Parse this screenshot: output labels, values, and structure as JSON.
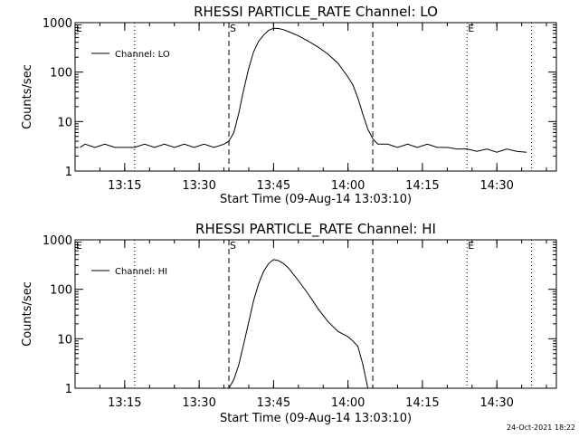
{
  "chart_data": [
    {
      "type": "line",
      "title": "RHESSI PARTICLE_RATE Channel: LO",
      "xlabel": "Start Time (09-Aug-14 13:03:10)",
      "ylabel": "Counts/sec",
      "yscale": "log",
      "ylim": [
        1,
        1000
      ],
      "y_ticks": [
        1,
        10,
        100,
        1000
      ],
      "y_tick_labels": [
        "1",
        "10",
        "100",
        "1000"
      ],
      "xlim": [
        "13:05",
        "14:42"
      ],
      "x_ticks": [
        "13:15",
        "13:30",
        "13:45",
        "14:00",
        "14:15",
        "14:30"
      ],
      "legend": {
        "position": "top-left",
        "entries": [
          "Channel: LO"
        ]
      },
      "markers": [
        {
          "time": "13:05",
          "style": "dotted",
          "label": "E"
        },
        {
          "time": "13:17",
          "style": "dotted",
          "label": ""
        },
        {
          "time": "13:36",
          "style": "dashed",
          "label": "S"
        },
        {
          "time": "14:05",
          "style": "dashed",
          "label": ""
        },
        {
          "time": "14:24",
          "style": "dotted",
          "label": "E"
        },
        {
          "time": "14:37",
          "style": "dotted",
          "label": ""
        }
      ],
      "series": [
        {
          "name": "Channel: LO",
          "x": [
            "13:06",
            "13:07",
            "13:09",
            "13:11",
            "13:13",
            "13:15",
            "13:17",
            "13:19",
            "13:21",
            "13:23",
            "13:25",
            "13:27",
            "13:29",
            "13:31",
            "13:33",
            "13:35",
            "13:36",
            "13:37",
            "13:38",
            "13:39",
            "13:40",
            "13:41",
            "13:42",
            "13:43",
            "13:44",
            "13:45",
            "13:46",
            "13:47",
            "13:48",
            "13:50",
            "13:52",
            "13:54",
            "13:56",
            "13:58",
            "14:00",
            "14:01",
            "14:02",
            "14:03",
            "14:04",
            "14:05",
            "14:06",
            "14:08",
            "14:10",
            "14:12",
            "14:14",
            "14:16",
            "14:18",
            "14:20",
            "14:22",
            "14:24",
            "14:26",
            "14:28",
            "14:30",
            "14:32",
            "14:34",
            "14:36"
          ],
          "y": [
            3,
            3.5,
            3,
            3.5,
            3,
            3,
            3,
            3.5,
            3,
            3.5,
            3,
            3.5,
            3,
            3.5,
            3,
            3.5,
            4,
            6,
            15,
            45,
            120,
            260,
            420,
            560,
            700,
            770,
            760,
            720,
            660,
            540,
            420,
            320,
            230,
            150,
            80,
            55,
            30,
            14,
            7,
            4.5,
            3.5,
            3.5,
            3,
            3.5,
            3,
            3.5,
            3,
            3,
            2.8,
            2.8,
            2.5,
            2.8,
            2.4,
            2.8,
            2.5,
            2.4
          ]
        }
      ]
    },
    {
      "type": "line",
      "title": "RHESSI PARTICLE_RATE Channel: HI",
      "xlabel": "Start Time (09-Aug-14 13:03:10)",
      "ylabel": "Counts/sec",
      "yscale": "log",
      "ylim": [
        1,
        1000
      ],
      "y_ticks": [
        1,
        10,
        100,
        1000
      ],
      "y_tick_labels": [
        "1",
        "10",
        "100",
        "1000"
      ],
      "xlim": [
        "13:05",
        "14:42"
      ],
      "x_ticks": [
        "13:15",
        "13:30",
        "13:45",
        "14:00",
        "14:15",
        "14:30"
      ],
      "legend": {
        "position": "top-left",
        "entries": [
          "Channel: HI"
        ]
      },
      "markers": [
        {
          "time": "13:05",
          "style": "dotted",
          "label": "E"
        },
        {
          "time": "13:17",
          "style": "dotted",
          "label": ""
        },
        {
          "time": "13:36",
          "style": "dashed",
          "label": "S"
        },
        {
          "time": "14:05",
          "style": "dashed",
          "label": ""
        },
        {
          "time": "14:24",
          "style": "dotted",
          "label": "E"
        },
        {
          "time": "14:37",
          "style": "dotted",
          "label": ""
        }
      ],
      "series": [
        {
          "name": "Channel: HI",
          "x": [
            "13:36",
            "13:37",
            "13:38",
            "13:39",
            "13:40",
            "13:41",
            "13:42",
            "13:43",
            "13:44",
            "13:45",
            "13:46",
            "13:47",
            "13:48",
            "13:50",
            "13:52",
            "13:54",
            "13:56",
            "13:58",
            "14:00",
            "14:01",
            "14:02",
            "14:03",
            "14:04"
          ],
          "y": [
            1,
            1.5,
            3,
            8,
            22,
            60,
            130,
            230,
            330,
            400,
            380,
            330,
            270,
            150,
            80,
            40,
            22,
            14,
            11,
            9,
            7,
            3,
            1
          ]
        }
      ]
    }
  ],
  "footer": {
    "timestamp": "24-Oct-2021 18:22"
  }
}
